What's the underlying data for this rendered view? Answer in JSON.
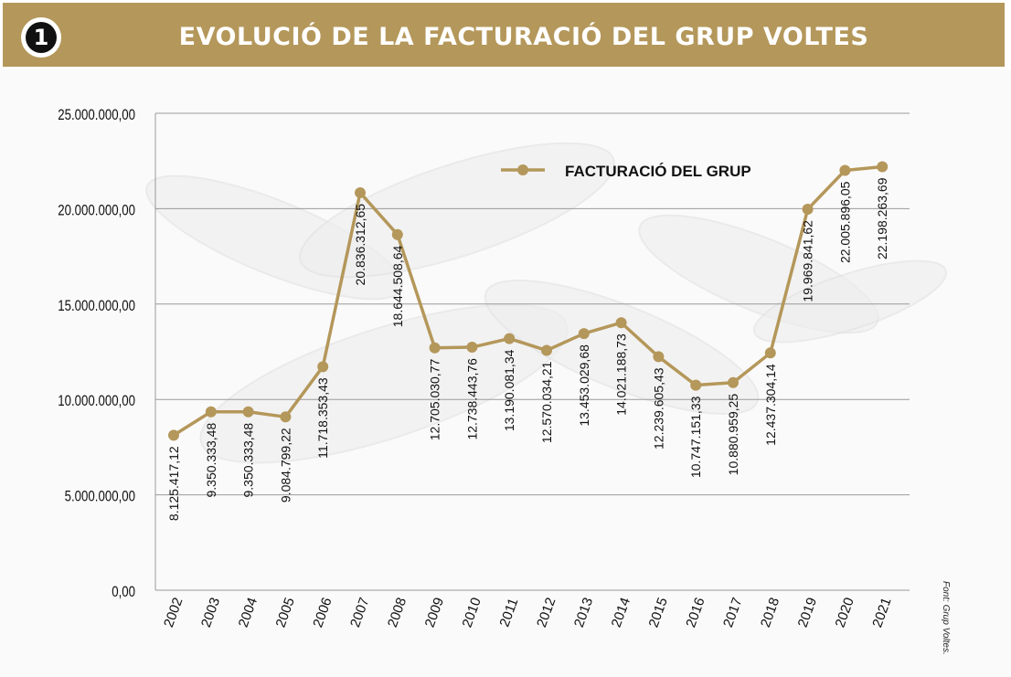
{
  "header": {
    "badge_number": "1",
    "title": "EVOLUCIÓ DE LA FACTURACIÓ DEL GRUP VOLTES"
  },
  "source_note": "Font: Grup Voltes.",
  "colors": {
    "header_bg": "#b4975a",
    "series_line": "#b4975a",
    "grid": "#9a9a9a",
    "text": "#111111"
  },
  "chart_data": {
    "type": "line",
    "title": "EVOLUCIÓ DE LA FACTURACIÓ DEL GRUP VOLTES",
    "xlabel": "",
    "ylabel": "",
    "ylim": [
      0,
      25000000
    ],
    "y_ticks": [
      0,
      5000000,
      10000000,
      15000000,
      20000000,
      25000000
    ],
    "y_tick_labels": [
      "0,00",
      "5.000.000,00",
      "10.000.000,00",
      "15.000.000,00",
      "20.000.000,00",
      "25.000.000,00"
    ],
    "grid": true,
    "legend_position": "top-center",
    "categories": [
      "2002",
      "2003",
      "2004",
      "2005",
      "2006",
      "2007",
      "2008",
      "2009",
      "2010",
      "2011",
      "2012",
      "2013",
      "2014",
      "2015",
      "2016",
      "2017",
      "2018",
      "2019",
      "2020",
      "2021"
    ],
    "series": [
      {
        "name": "FACTURACIÓ DEL GRUP",
        "values": [
          8125417.12,
          9350333.48,
          9350333.48,
          9084799.22,
          11718353.43,
          20836312.65,
          18644508.64,
          12705030.77,
          12738443.76,
          13190081.34,
          12570034.21,
          13453029.68,
          14021188.73,
          12239605.43,
          10747151.33,
          10880959.25,
          12437304.14,
          19969841.62,
          22005896.05,
          22198263.69
        ],
        "data_labels": [
          "8.125.417,12",
          "9.350.333,48",
          "9.350.333,48",
          "9.084.799,22",
          "11.718.353,43",
          "20.836.312,65",
          "18.644.508,64",
          "12.705.030,77",
          "12.738.443,76",
          "13.190.081,34",
          "12.570.034,21",
          "13.453.029,68",
          "14.021.188,73",
          "12.239.605,43",
          "10.747.151,33",
          "10.880.959,25",
          "12.437.304,14",
          "19.969.841,62",
          "22.005.896,05",
          "22.198.263,69"
        ]
      }
    ]
  }
}
